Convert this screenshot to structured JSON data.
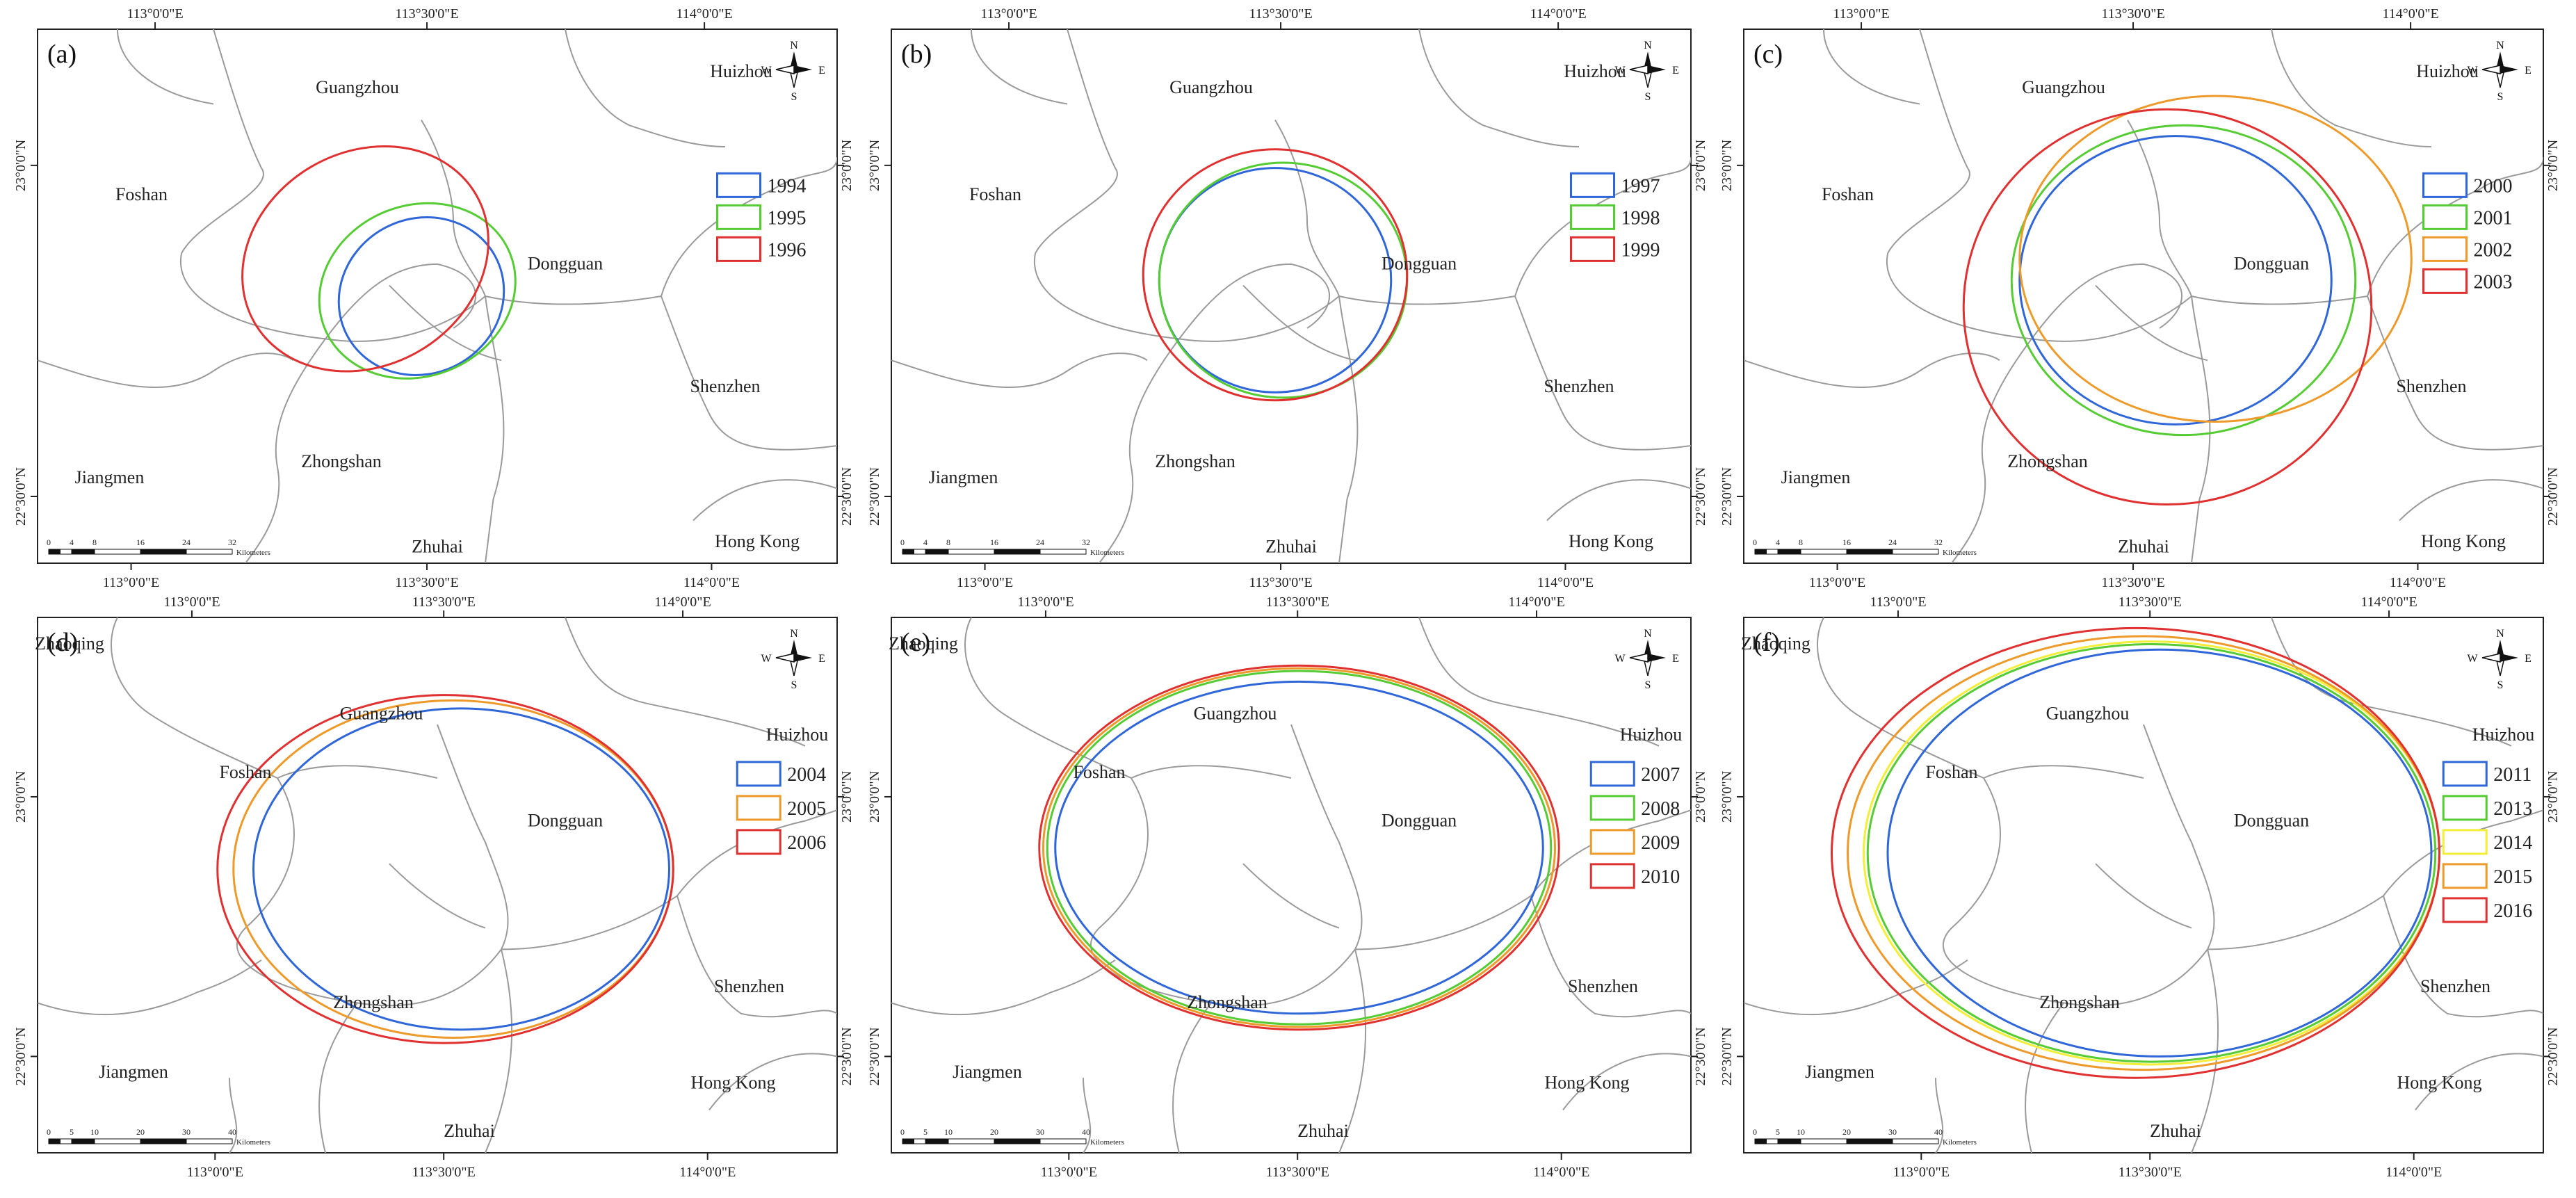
{
  "panels": [
    {
      "id": "a",
      "label": "(a)",
      "top_lon": [
        "113°0'0\"E",
        "113°30'0\"E",
        "114°0'0\"E"
      ],
      "bottom_lon": [
        "113°0'0\"E",
        "113°30'0\"E",
        "114°0'0\"E"
      ],
      "left_lat": [
        "23°0'0\"N",
        "22°30'0\"N"
      ],
      "right_lat": [
        "23°0'0\"N",
        "22°30'0\"N"
      ],
      "cities": [
        "Guangzhou",
        "Huizhou",
        "Foshan",
        "Dongguan",
        "Shenzhen",
        "Jiangmen",
        "Zhongshan",
        "Zhuhai",
        "Hong Kong"
      ],
      "scale": {
        "ticks": [
          "0",
          "4",
          "8",
          "16",
          "24",
          "32"
        ],
        "unit": "Kilometers"
      },
      "legend": [
        {
          "year": "1994",
          "color": "#2f66d8"
        },
        {
          "year": "1995",
          "color": "#55cc33"
        },
        {
          "year": "1996",
          "color": "#e03030"
        }
      ]
    },
    {
      "id": "b",
      "label": "(b)",
      "top_lon": [
        "113°0'0\"E",
        "113°30'0\"E",
        "114°0'0\"E"
      ],
      "bottom_lon": [
        "113°0'0\"E",
        "113°30'0\"E",
        "114°0'0\"E"
      ],
      "left_lat": [
        "23°0'0\"N",
        "22°30'0\"N"
      ],
      "right_lat": [
        "23°0'0\"N",
        "22°30'0\"N"
      ],
      "cities": [
        "Guangzhou",
        "Huizhou",
        "Foshan",
        "Dongguan",
        "Shenzhen",
        "Jiangmen",
        "Zhongshan",
        "Zhuhai",
        "Hong Kong"
      ],
      "scale": {
        "ticks": [
          "0",
          "4",
          "8",
          "16",
          "24",
          "32"
        ],
        "unit": "Kilometers"
      },
      "legend": [
        {
          "year": "1997",
          "color": "#2f66d8"
        },
        {
          "year": "1998",
          "color": "#55cc33"
        },
        {
          "year": "1999",
          "color": "#e03030"
        }
      ]
    },
    {
      "id": "c",
      "label": "(c)",
      "top_lon": [
        "113°0'0\"E",
        "113°30'0\"E",
        "114°0'0\"E"
      ],
      "bottom_lon": [
        "113°0'0\"E",
        "113°30'0\"E",
        "114°0'0\"E"
      ],
      "left_lat": [
        "23°0'0\"N",
        "22°30'0\"N"
      ],
      "right_lat": [
        "23°0'0\"N",
        "22°30'0\"N"
      ],
      "cities": [
        "Guangzhou",
        "Huizhou",
        "Foshan",
        "Dongguan",
        "Shenzhen",
        "Jiangmen",
        "Zhongshan",
        "Zhuhai",
        "Hong Kong"
      ],
      "scale": {
        "ticks": [
          "0",
          "4",
          "8",
          "16",
          "24",
          "32"
        ],
        "unit": "Kilometers"
      },
      "legend": [
        {
          "year": "2000",
          "color": "#2f66d8"
        },
        {
          "year": "2001",
          "color": "#55cc33"
        },
        {
          "year": "2002",
          "color": "#ee9a2a"
        },
        {
          "year": "2003",
          "color": "#e03030"
        }
      ]
    },
    {
      "id": "d",
      "label": "(d)",
      "top_lon": [
        "113°0'0\"E",
        "113°30'0\"E",
        "114°0'0\"E"
      ],
      "bottom_lon": [
        "113°0'0\"E",
        "113°30'0\"E",
        "114°0'0\"E"
      ],
      "left_lat": [
        "23°0'0\"N",
        "22°30'0\"N"
      ],
      "right_lat": [
        "23°0'0\"N",
        "22°30'0\"N"
      ],
      "cities": [
        "Zhaoqing",
        "Guangzhou",
        "Huizhou",
        "Foshan",
        "Dongguan",
        "Zhongshan",
        "Shenzhen",
        "Jiangmen",
        "Hong Kong",
        "Zhuhai"
      ],
      "scale": {
        "ticks": [
          "0",
          "5",
          "10",
          "20",
          "30",
          "40"
        ],
        "unit": "Kilometers"
      },
      "legend": [
        {
          "year": "2004",
          "color": "#2f66d8"
        },
        {
          "year": "2005",
          "color": "#ee9a2a"
        },
        {
          "year": "2006",
          "color": "#e03030"
        }
      ]
    },
    {
      "id": "e",
      "label": "(e)",
      "top_lon": [
        "113°0'0\"E",
        "113°30'0\"E",
        "114°0'0\"E"
      ],
      "bottom_lon": [
        "113°0'0\"E",
        "113°30'0\"E",
        "114°0'0\"E"
      ],
      "left_lat": [
        "23°0'0\"N",
        "22°30'0\"N"
      ],
      "right_lat": [
        "23°0'0\"N",
        "22°30'0\"N"
      ],
      "cities": [
        "Zhaoqing",
        "Guangzhou",
        "Huizhou",
        "Foshan",
        "Dongguan",
        "Zhongshan",
        "Shenzhen",
        "Jiangmen",
        "Hong Kong",
        "Zhuhai"
      ],
      "scale": {
        "ticks": [
          "0",
          "5",
          "10",
          "20",
          "30",
          "40"
        ],
        "unit": "Kilometers"
      },
      "legend": [
        {
          "year": "2007",
          "color": "#2f66d8"
        },
        {
          "year": "2008",
          "color": "#55cc33"
        },
        {
          "year": "2009",
          "color": "#ee9a2a"
        },
        {
          "year": "2010",
          "color": "#e03030"
        }
      ]
    },
    {
      "id": "f",
      "label": "(f)",
      "top_lon": [
        "113°0'0\"E",
        "113°30'0\"E",
        "114°0'0\"E"
      ],
      "bottom_lon": [
        "113°0'0\"E",
        "113°30'0\"E",
        "114°0'0\"E"
      ],
      "left_lat": [
        "23°0'0\"N",
        "22°30'0\"N"
      ],
      "right_lat": [
        "23°0'0\"N",
        "22°30'0\"N"
      ],
      "cities": [
        "Zhaoqing",
        "Guangzhou",
        "Huizhou",
        "Foshan",
        "Dongguan",
        "Zhongshan",
        "Shenzhen",
        "Jiangmen",
        "Hong Kong",
        "Zhuhai"
      ],
      "scale": {
        "ticks": [
          "0",
          "5",
          "10",
          "20",
          "30",
          "40"
        ],
        "unit": "Kilometers"
      },
      "legend": [
        {
          "year": "2011",
          "color": "#2f66d8"
        },
        {
          "year": "2013",
          "color": "#55cc33"
        },
        {
          "year": "2014",
          "color": "#f2ee3a"
        },
        {
          "year": "2015",
          "color": "#ee9a2a"
        },
        {
          "year": "2016",
          "color": "#e03030"
        }
      ]
    }
  ],
  "north_arrow": {
    "n": "N",
    "s": "S",
    "e": "E",
    "w": "W"
  }
}
